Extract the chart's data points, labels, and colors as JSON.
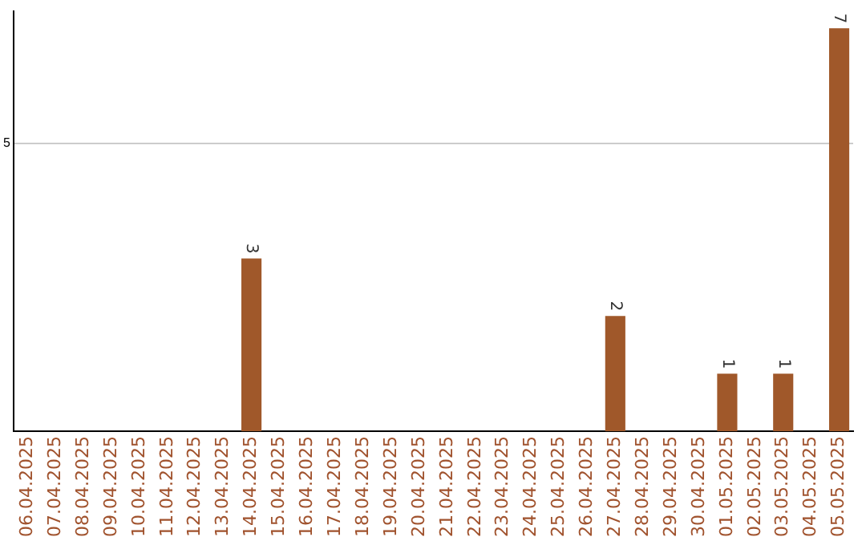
{
  "chart_data": {
    "type": "bar",
    "categories": [
      "06.04.2025",
      "07.04.2025",
      "08.04.2025",
      "09.04.2025",
      "10.04.2025",
      "11.04.2025",
      "12.04.2025",
      "13.04.2025",
      "14.04.2025",
      "15.04.2025",
      "16.04.2025",
      "17.04.2025",
      "18.04.2025",
      "19.04.2025",
      "20.04.2025",
      "21.04.2025",
      "22.04.2025",
      "23.04.2025",
      "24.04.2025",
      "25.04.2025",
      "26.04.2025",
      "27.04.2025",
      "28.04.2025",
      "29.04.2025",
      "30.04.2025",
      "01.05.2025",
      "02.05.2025",
      "03.05.2025",
      "04.05.2025",
      "05.05.2025"
    ],
    "values": [
      0,
      0,
      0,
      0,
      0,
      0,
      0,
      0,
      3,
      0,
      0,
      0,
      0,
      0,
      0,
      0,
      0,
      0,
      0,
      0,
      0,
      2,
      0,
      0,
      0,
      1,
      0,
      1,
      0,
      7
    ],
    "value_labels": [
      null,
      null,
      null,
      null,
      null,
      null,
      null,
      null,
      "3",
      null,
      null,
      null,
      null,
      null,
      null,
      null,
      null,
      null,
      null,
      null,
      null,
      "2",
      null,
      null,
      null,
      "1",
      null,
      "1",
      null,
      "7"
    ],
    "color": "#a0582a",
    "ylim": [
      0,
      7.3
    ],
    "yticks": [
      5
    ],
    "grid": "y",
    "legend": false
  }
}
